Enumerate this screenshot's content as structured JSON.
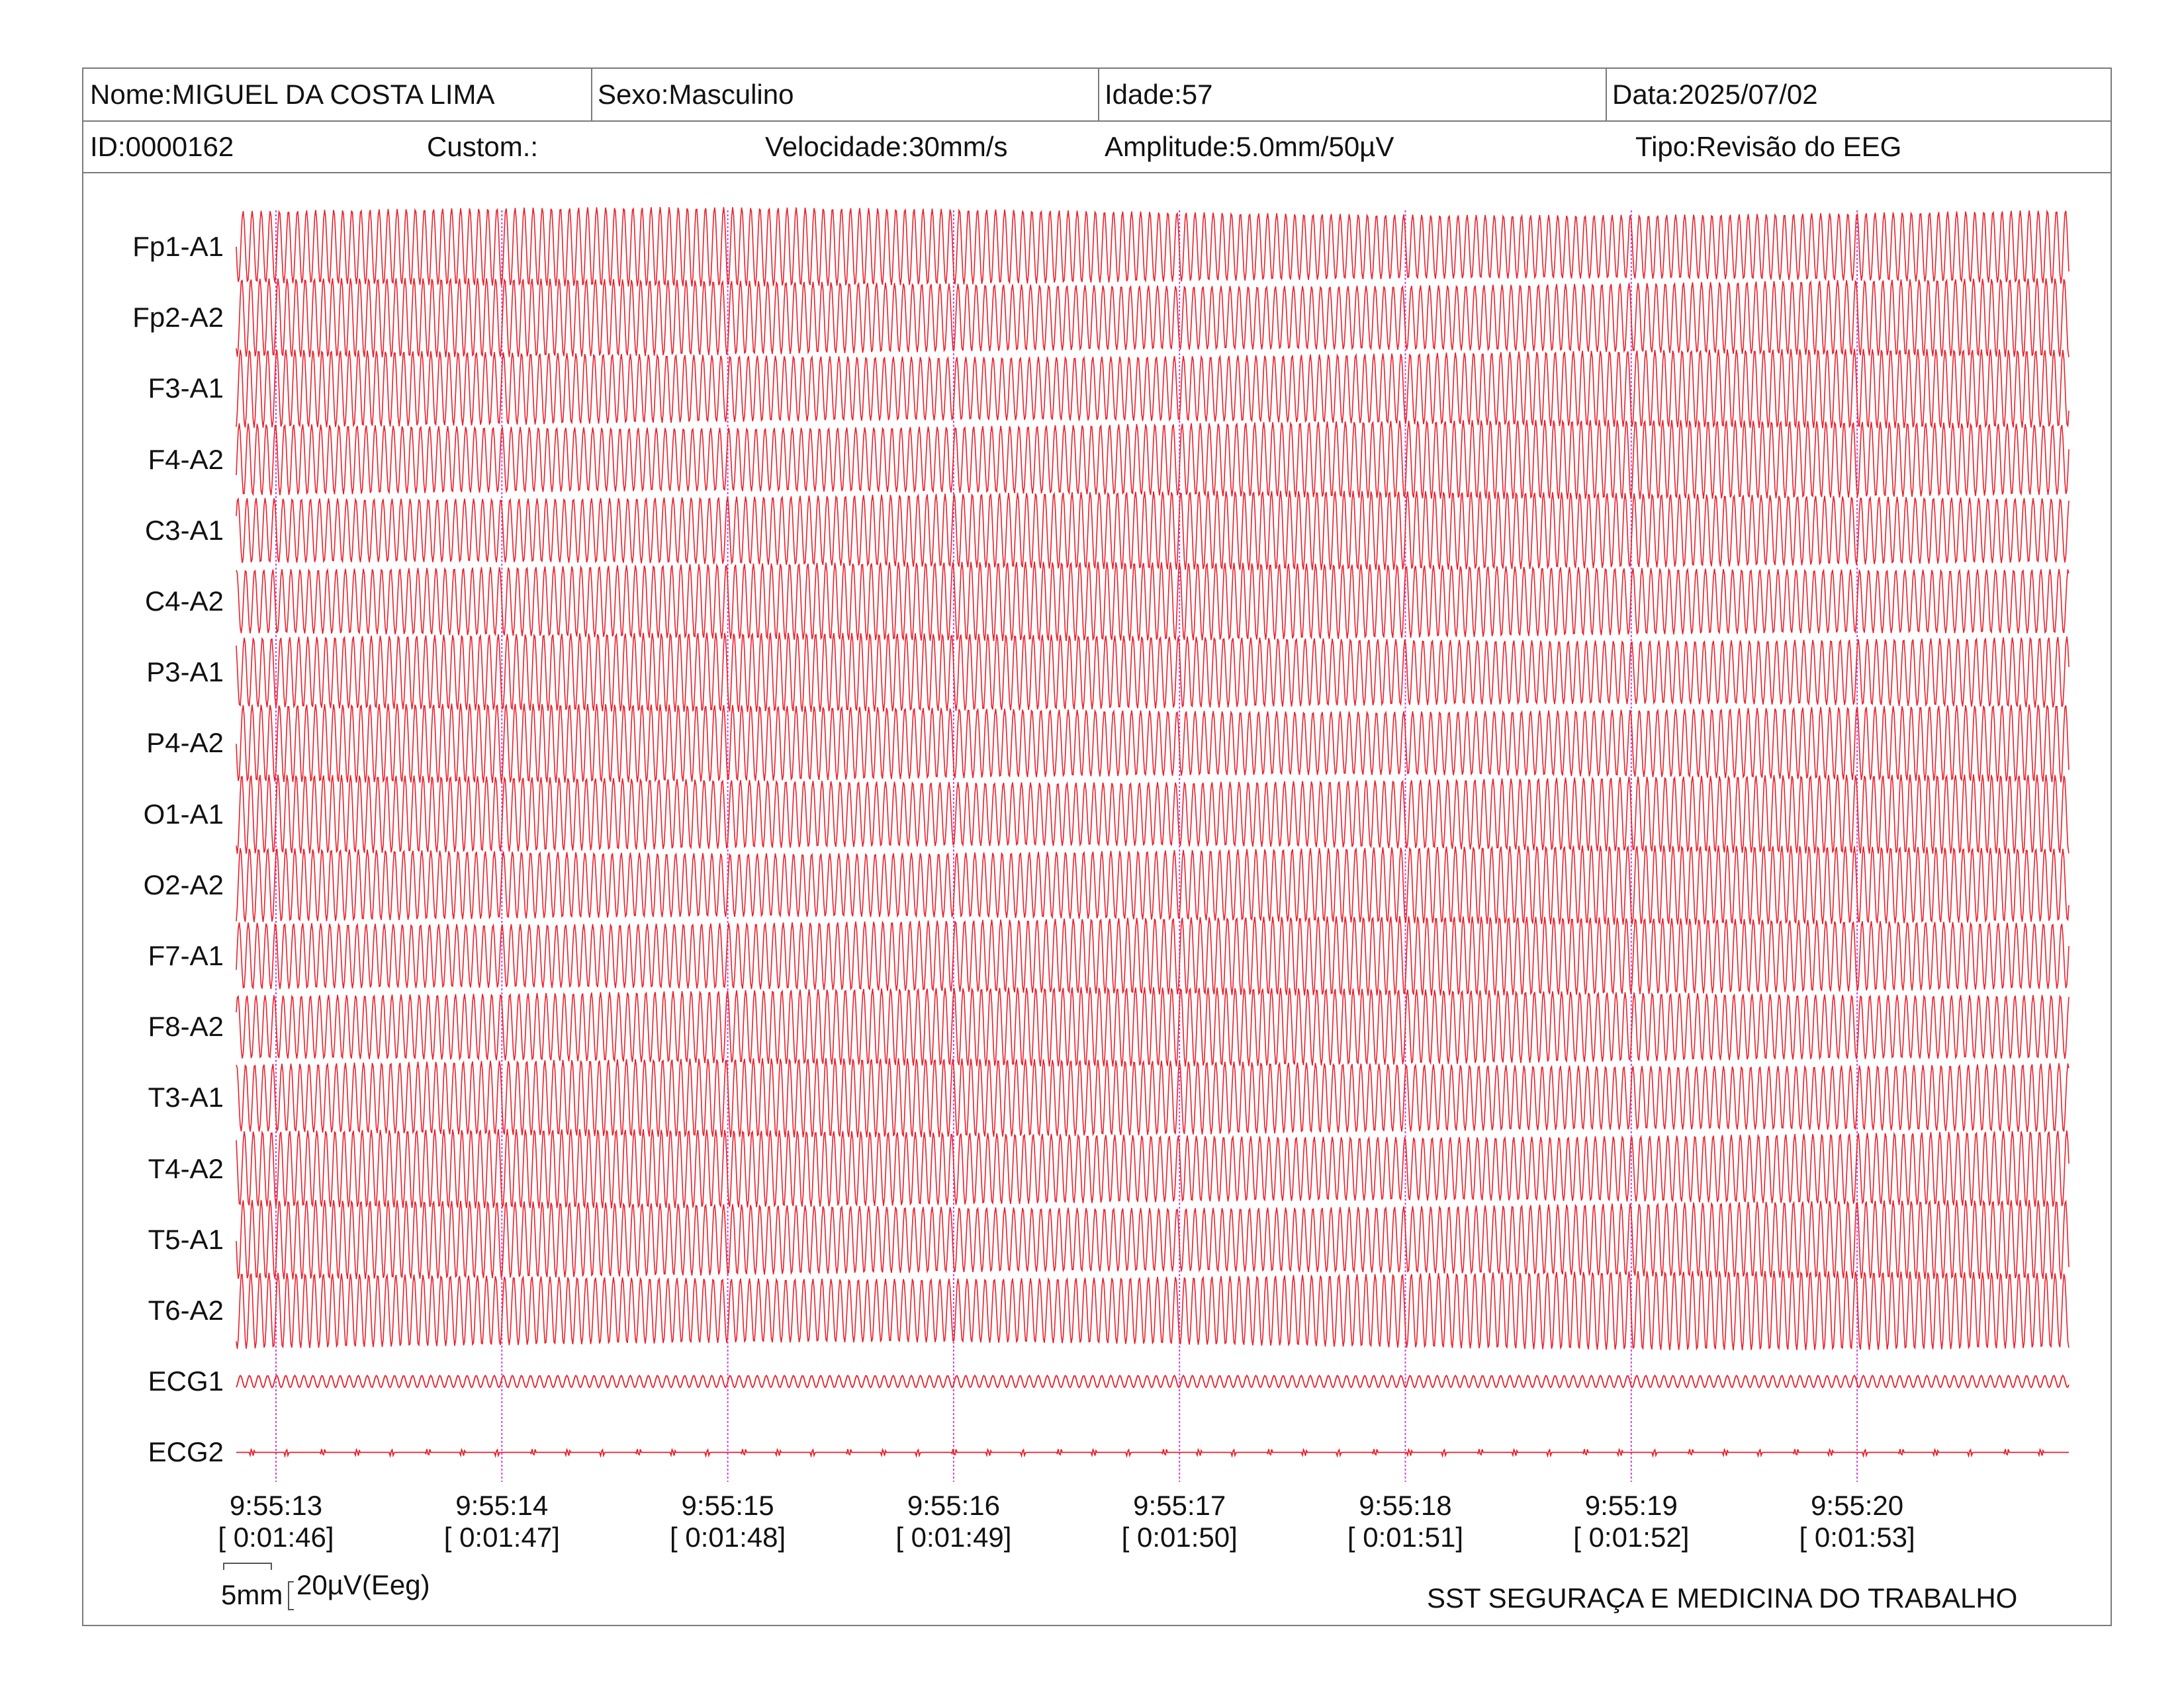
{
  "header": {
    "name": "Nome:MIGUEL DA COSTA LIMA",
    "sex": "Sexo:Masculino",
    "age": "Idade:57",
    "date": "Data:2025/07/02",
    "id": "ID:0000162",
    "custom": "Custom.:",
    "speed": "Velocidade:30mm/s",
    "amplitude": "Amplitude:5.0mm/50µV",
    "type": "Tipo:Revisão do EEG"
  },
  "channels": [
    {
      "label": "Fp1-A1",
      "kind": "eeg"
    },
    {
      "label": "Fp2-A2",
      "kind": "eeg"
    },
    {
      "label": "F3-A1",
      "kind": "eeg"
    },
    {
      "label": "F4-A2",
      "kind": "eeg"
    },
    {
      "label": "C3-A1",
      "kind": "eeg"
    },
    {
      "label": "C4-A2",
      "kind": "eeg"
    },
    {
      "label": "P3-A1",
      "kind": "eeg"
    },
    {
      "label": "P4-A2",
      "kind": "eeg"
    },
    {
      "label": "O1-A1",
      "kind": "eeg"
    },
    {
      "label": "O2-A2",
      "kind": "eeg"
    },
    {
      "label": "F7-A1",
      "kind": "eeg"
    },
    {
      "label": "F8-A2",
      "kind": "eeg"
    },
    {
      "label": "T3-A1",
      "kind": "eeg"
    },
    {
      "label": "T4-A2",
      "kind": "eeg"
    },
    {
      "label": "T5-A1",
      "kind": "eeg"
    },
    {
      "label": "T6-A2",
      "kind": "eeg"
    },
    {
      "label": "ECG1",
      "kind": "ecg-small"
    },
    {
      "label": "ECG2",
      "kind": "ecg-flat"
    }
  ],
  "time_marks": [
    {
      "clock": "9:55:13",
      "elapsed": "[ 0:01:46]"
    },
    {
      "clock": "9:55:14",
      "elapsed": "[ 0:01:47]"
    },
    {
      "clock": "9:55:15",
      "elapsed": "[ 0:01:48]"
    },
    {
      "clock": "9:55:16",
      "elapsed": "[ 0:01:49]"
    },
    {
      "clock": "9:55:17",
      "elapsed": "[ 0:01:50]"
    },
    {
      "clock": "9:55:18",
      "elapsed": "[ 0:01:51]"
    },
    {
      "clock": "9:55:19",
      "elapsed": "[ 0:01:52]"
    },
    {
      "clock": "9:55:20",
      "elapsed": "[ 0:01:53]"
    }
  ],
  "scale": {
    "time_label": "5mm",
    "amplitude_label": "20µV(Eeg)"
  },
  "footer": {
    "organization": "SST SEGURAÇA E MEDICINA DO TRABALHO"
  },
  "colors": {
    "trace": "#e8202a",
    "time_marker": "#d040d8",
    "border": "#7a7a7a"
  }
}
